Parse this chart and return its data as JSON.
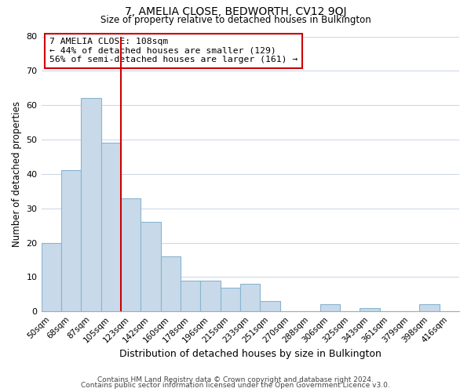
{
  "title1": "7, AMELIA CLOSE, BEDWORTH, CV12 9QJ",
  "title2": "Size of property relative to detached houses in Bulkington",
  "xlabel": "Distribution of detached houses by size in Bulkington",
  "ylabel": "Number of detached properties",
  "bin_labels": [
    "50sqm",
    "68sqm",
    "87sqm",
    "105sqm",
    "123sqm",
    "142sqm",
    "160sqm",
    "178sqm",
    "196sqm",
    "215sqm",
    "233sqm",
    "251sqm",
    "270sqm",
    "288sqm",
    "306sqm",
    "325sqm",
    "343sqm",
    "361sqm",
    "379sqm",
    "398sqm",
    "416sqm"
  ],
  "bar_heights": [
    20,
    41,
    62,
    49,
    33,
    26,
    16,
    9,
    9,
    7,
    8,
    3,
    0,
    0,
    2,
    0,
    1,
    0,
    0,
    2,
    0
  ],
  "bar_color": "#c8daea",
  "bar_edge_color": "#8ab4d0",
  "vline_color": "#cc0000",
  "annotation_line1": "7 AMELIA CLOSE: 108sqm",
  "annotation_line2": "← 44% of detached houses are smaller (129)",
  "annotation_line3": "56% of semi-detached houses are larger (161) →",
  "annotation_box_color": "#ffffff",
  "annotation_box_edge": "#cc0000",
  "ylim": [
    0,
    80
  ],
  "yticks": [
    0,
    10,
    20,
    30,
    40,
    50,
    60,
    70,
    80
  ],
  "footer1": "Contains HM Land Registry data © Crown copyright and database right 2024.",
  "footer2": "Contains public sector information licensed under the Open Government Licence v3.0.",
  "bg_color": "#ffffff",
  "grid_color": "#d0d8e8"
}
